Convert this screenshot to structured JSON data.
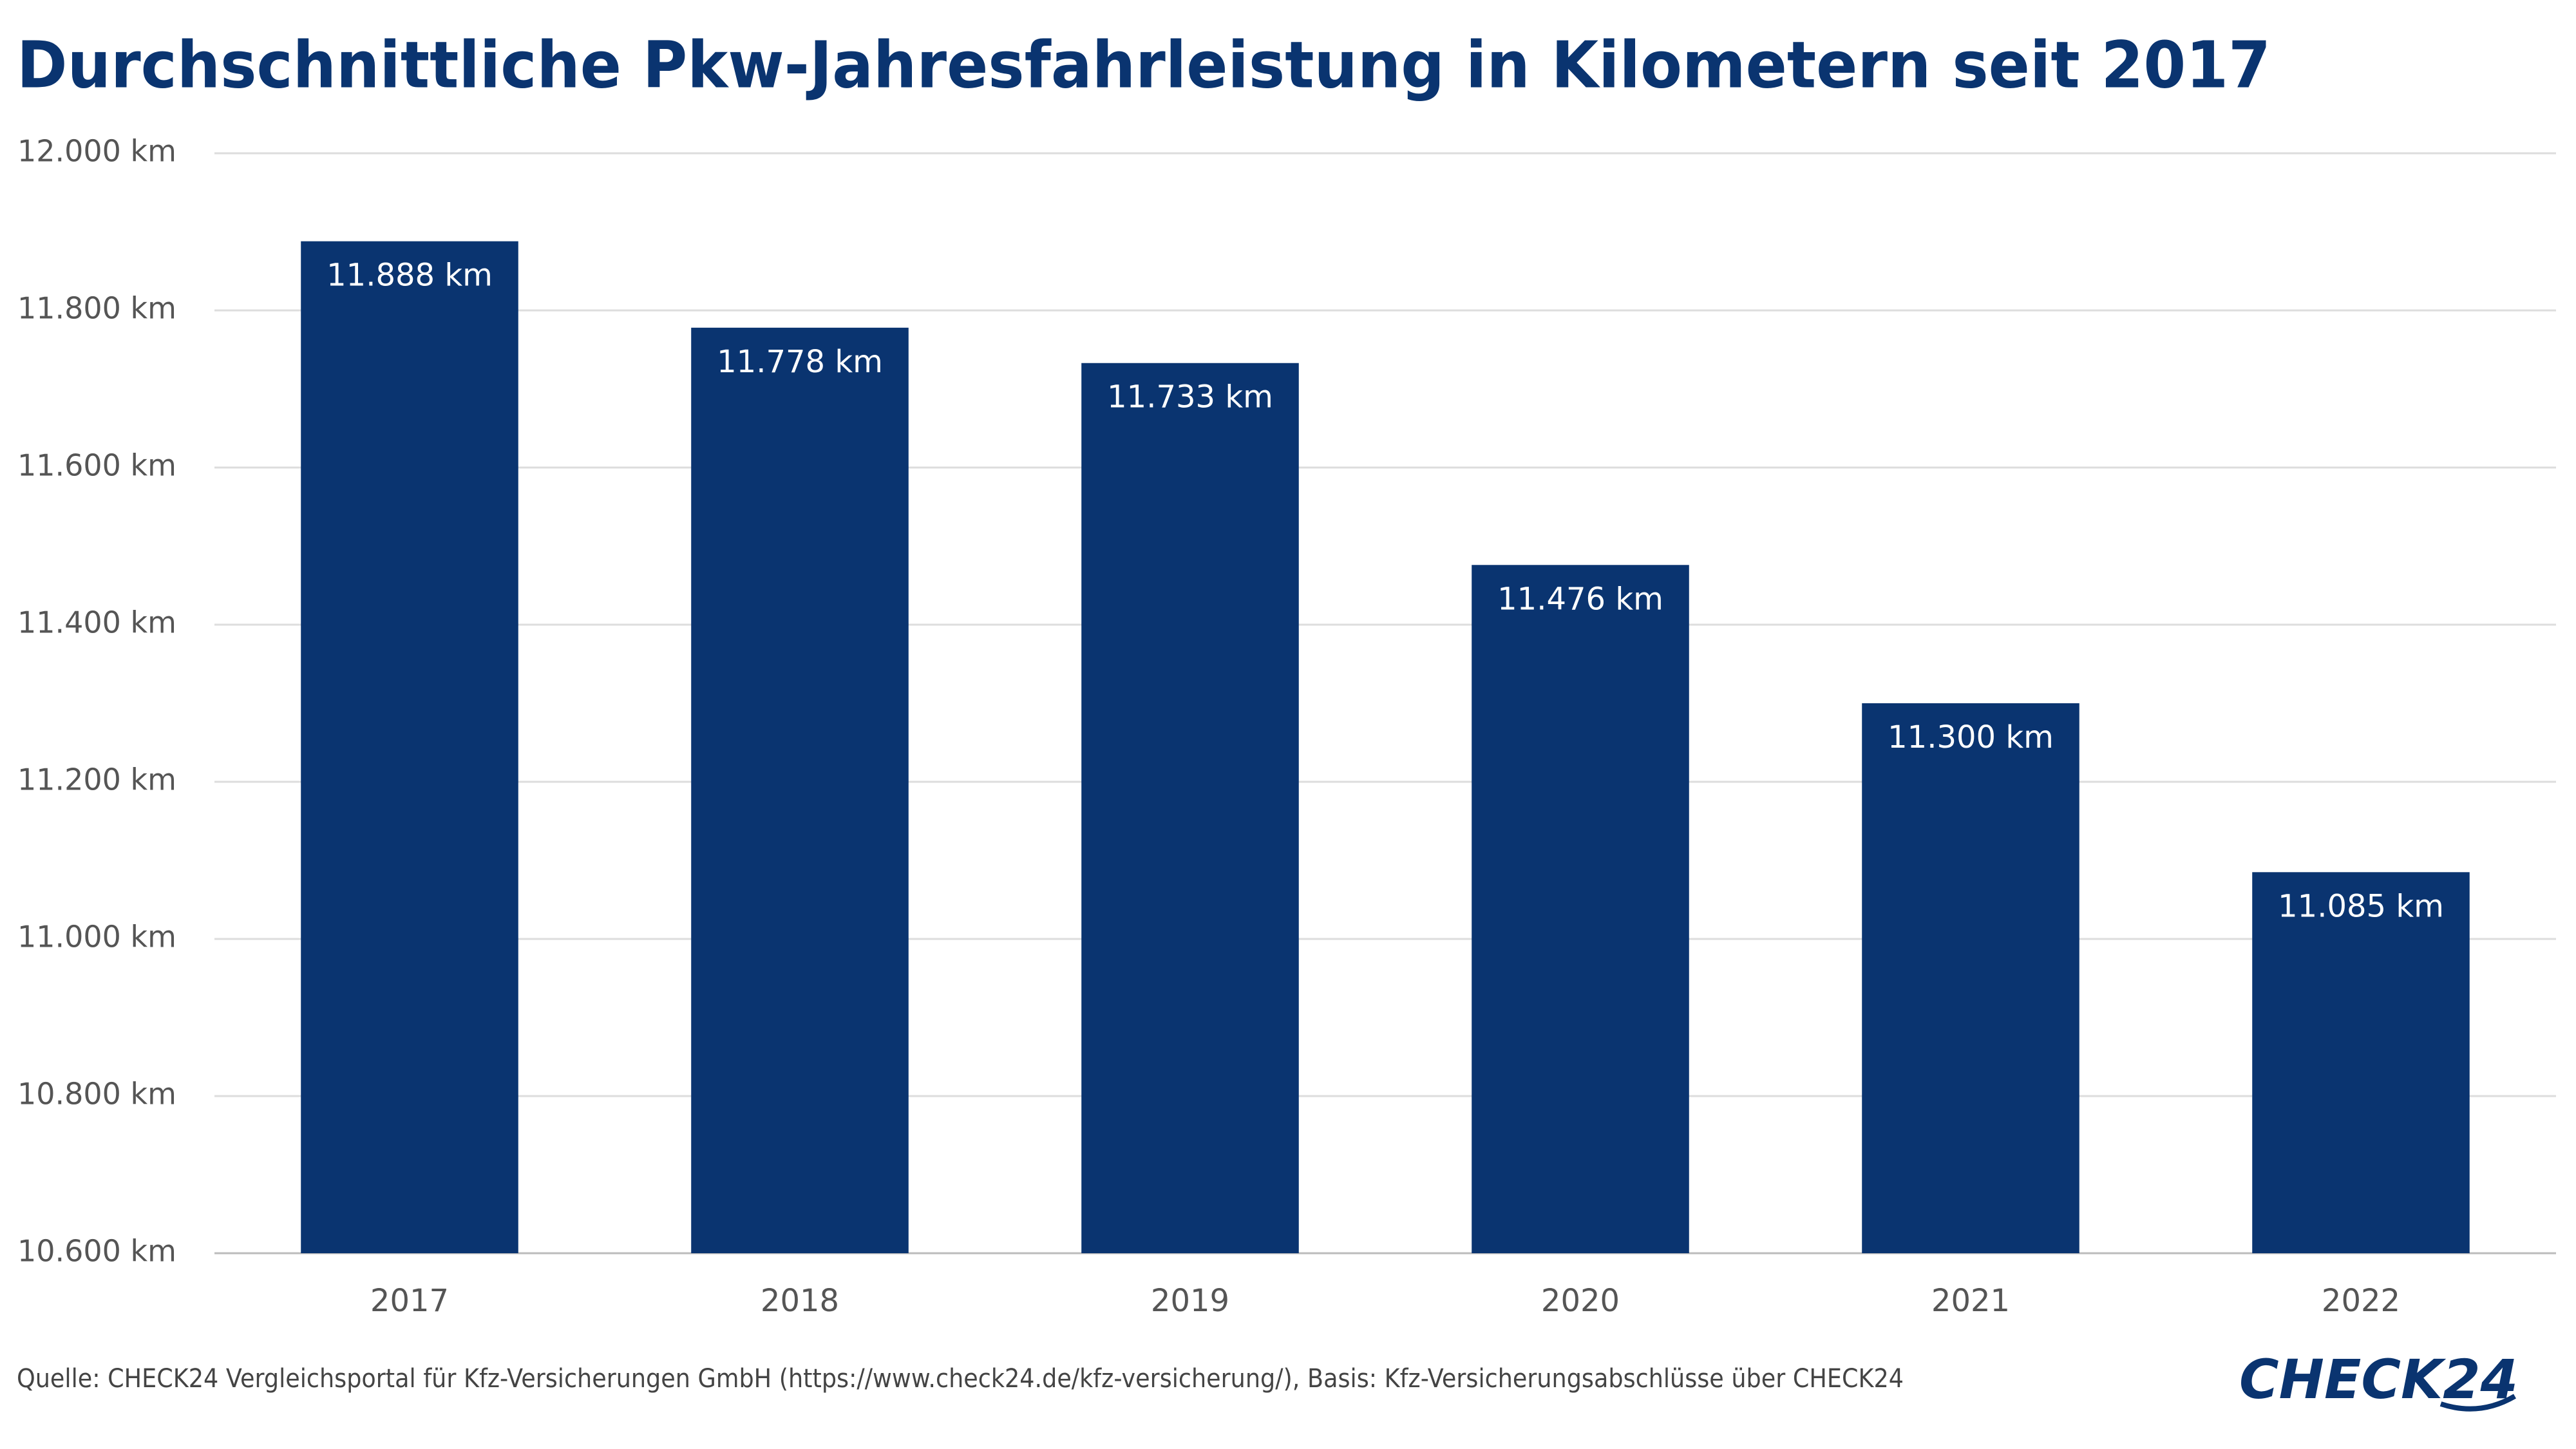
{
  "chart_data": {
    "type": "bar",
    "title": "Durchschnittliche Pkw-Jahresfahrleistung in Kilometern seit 2017",
    "categories": [
      "2017",
      "2018",
      "2019",
      "2020",
      "2021",
      "2022"
    ],
    "values": [
      11888,
      11778,
      11733,
      11476,
      11300,
      11085
    ],
    "value_labels": [
      "11.888 km",
      "11.778 km",
      "11.733 km",
      "11.476 km",
      "11.300 km",
      "11.085 km"
    ],
    "color": "#0a3470",
    "ylim": [
      10600,
      12000
    ],
    "yticks": [
      {
        "value": 10600,
        "label": "10.600 km"
      },
      {
        "value": 10800,
        "label": "10.800 km"
      },
      {
        "value": 11000,
        "label": "11.000 km"
      },
      {
        "value": 11200,
        "label": "11.200 km"
      },
      {
        "value": 11400,
        "label": "11.400 km"
      },
      {
        "value": 11600,
        "label": "11.600 km"
      },
      {
        "value": 11800,
        "label": "11.800 km"
      },
      {
        "value": 12000,
        "label": "12.000 km"
      }
    ],
    "grid": true,
    "source": "Quelle: CHECK24 Vergleichsportal für Kfz-Versicherungen GmbH (https://www.check24.de/kfz-versicherung/), Basis: Kfz-Versicherungsabschlüsse über CHECK24",
    "logo": "CHECK24"
  }
}
